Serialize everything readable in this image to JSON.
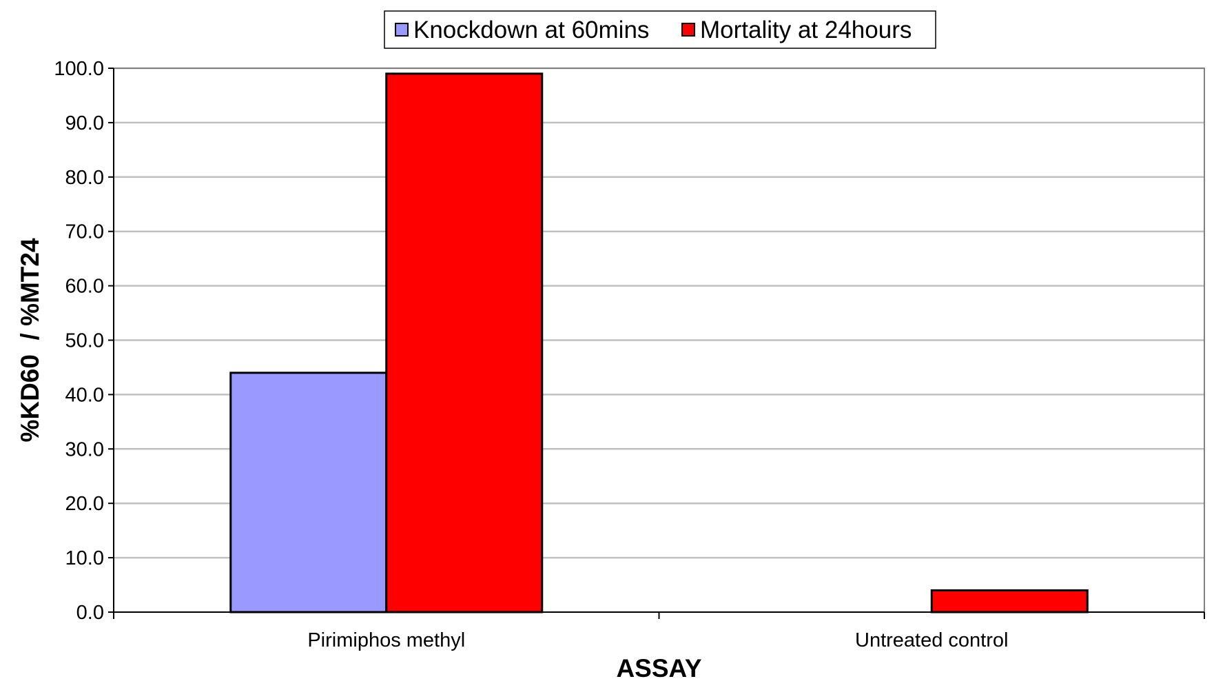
{
  "chart_data": {
    "type": "bar",
    "categories": [
      "Pirimiphos methyl",
      "Untreated control"
    ],
    "series": [
      {
        "name": "Knockdown at 60mins",
        "values": [
          44.0,
          0.0
        ],
        "color": "#9999ff"
      },
      {
        "name": "Mortality at 24hours",
        "values": [
          99.0,
          4.0
        ],
        "color": "#ff0000"
      }
    ],
    "xlabel": "ASSAY",
    "ylabel": "%KD60  / %MT24",
    "ylim": [
      0,
      100
    ],
    "ytick_step": 10,
    "ytick_decimals": 1,
    "grid": true,
    "legend_position": "top-center",
    "colors": {
      "gridline": "#c0c0c0",
      "plot_border": "#808080",
      "bar_outline": "#000000"
    }
  }
}
